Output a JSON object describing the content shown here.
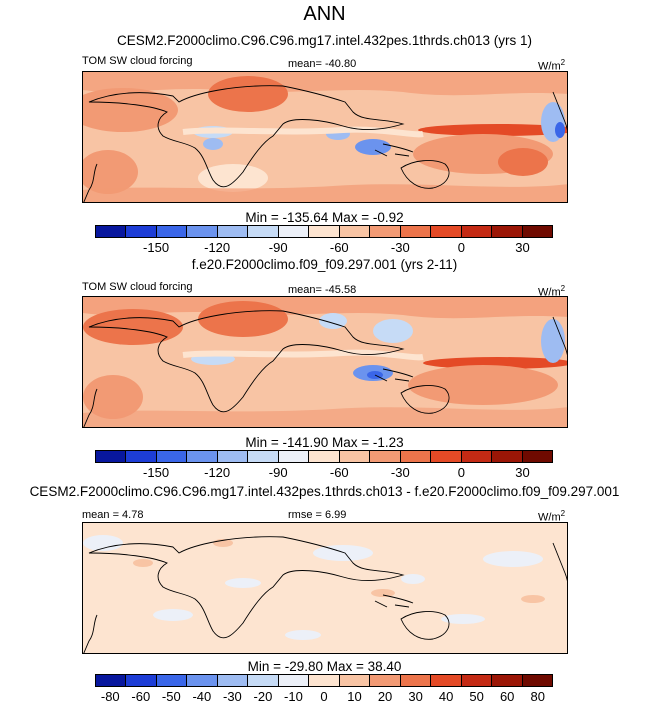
{
  "title": "ANN",
  "panels": [
    {
      "title": "CESM2.F2000climo.C96.C96.mg17.intel.432pes.1thrds.ch013 (yrs 1)",
      "left_label": "TOM SW cloud forcing",
      "center_label": "mean= -40.80",
      "unit": "W/m",
      "unit_sup": "2",
      "minmax": "Min = -135.64 Max =  -0.92",
      "colorbar": {
        "colors": [
          "#08179e",
          "#1d3dd6",
          "#3a66e8",
          "#6b93ee",
          "#9ebcf2",
          "#c6dbf6",
          "#ecf0f8",
          "#fde4d0",
          "#f8c4a4",
          "#f29a74",
          "#ec744b",
          "#e44a26",
          "#c42a14",
          "#9b1606",
          "#6f0a00"
        ],
        "labels": [
          "-150",
          "-120",
          "-90",
          "-60",
          "-30",
          "0",
          "30"
        ]
      }
    },
    {
      "title": "f.e20.F2000climo.f09_f09.297.001 (yrs 2-11)",
      "left_label": "TOM SW cloud forcing",
      "center_label": "mean= -45.58",
      "unit": "W/m",
      "unit_sup": "2",
      "minmax": "Min = -141.90 Max =  -1.23",
      "colorbar": {
        "colors": [
          "#08179e",
          "#1d3dd6",
          "#3a66e8",
          "#6b93ee",
          "#9ebcf2",
          "#c6dbf6",
          "#ecf0f8",
          "#fde4d0",
          "#f8c4a4",
          "#f29a74",
          "#ec744b",
          "#e44a26",
          "#c42a14",
          "#9b1606",
          "#6f0a00"
        ],
        "labels": [
          "-150",
          "-120",
          "-90",
          "-60",
          "-30",
          "0",
          "30"
        ]
      }
    },
    {
      "title": "CESM2.F2000climo.C96.C96.mg17.intel.432pes.1thrds.ch013 - f.e20.F2000climo.f09_f09.297.001",
      "left_label": "mean =   4.78",
      "center_label": "rmse =   6.99",
      "unit": "W/m",
      "unit_sup": "2",
      "minmax": "Min = -29.80 Max =  38.40",
      "colorbar": {
        "colors": [
          "#08179e",
          "#1d3dd6",
          "#3a66e8",
          "#6b93ee",
          "#9ebcf2",
          "#c6dbf6",
          "#ecf0f8",
          "#fde4d0",
          "#f8c4a4",
          "#f29a74",
          "#ec744b",
          "#e44a26",
          "#c42a14",
          "#9b1606",
          "#6f0a00"
        ],
        "labels": [
          "-80",
          "-60",
          "-50",
          "-40",
          "-30",
          "-20",
          "-10",
          "0",
          "10",
          "20",
          "30",
          "40",
          "50",
          "60",
          "80"
        ]
      }
    }
  ]
}
